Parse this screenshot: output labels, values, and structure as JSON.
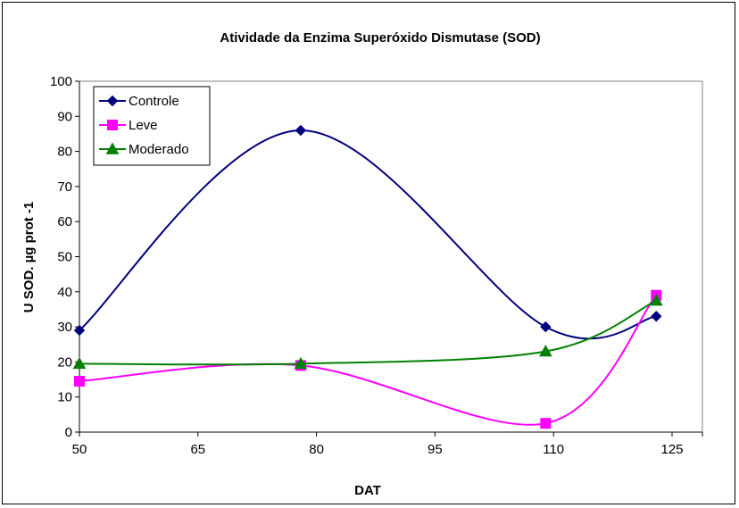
{
  "chart_data": {
    "type": "line",
    "title": "Atividade da Enzima Superóxido Dismutase (SOD)",
    "xlabel": "DAT",
    "ylabel": "U SOD. µg prot -1",
    "xlim": [
      50,
      130
    ],
    "ylim": [
      0,
      100
    ],
    "xticks": [
      50,
      65,
      80,
      95,
      110,
      125
    ],
    "yticks": [
      0,
      10,
      20,
      30,
      40,
      50,
      60,
      70,
      80,
      90,
      100
    ],
    "grid": false,
    "smooth": true,
    "legend_position": "top-left",
    "series": [
      {
        "name": "Controle",
        "color": "#000080",
        "marker": "diamond",
        "x": [
          50,
          78,
          109,
          123
        ],
        "y": [
          29,
          86,
          30,
          33
        ]
      },
      {
        "name": "Leve",
        "color": "#FF00FF",
        "marker": "square",
        "x": [
          50,
          78,
          109,
          123
        ],
        "y": [
          14.5,
          19,
          2.5,
          39
        ]
      },
      {
        "name": "Moderado",
        "color": "#008000",
        "marker": "triangle",
        "x": [
          50,
          78,
          109,
          123
        ],
        "y": [
          19.5,
          19.5,
          23,
          37.5
        ]
      }
    ]
  }
}
